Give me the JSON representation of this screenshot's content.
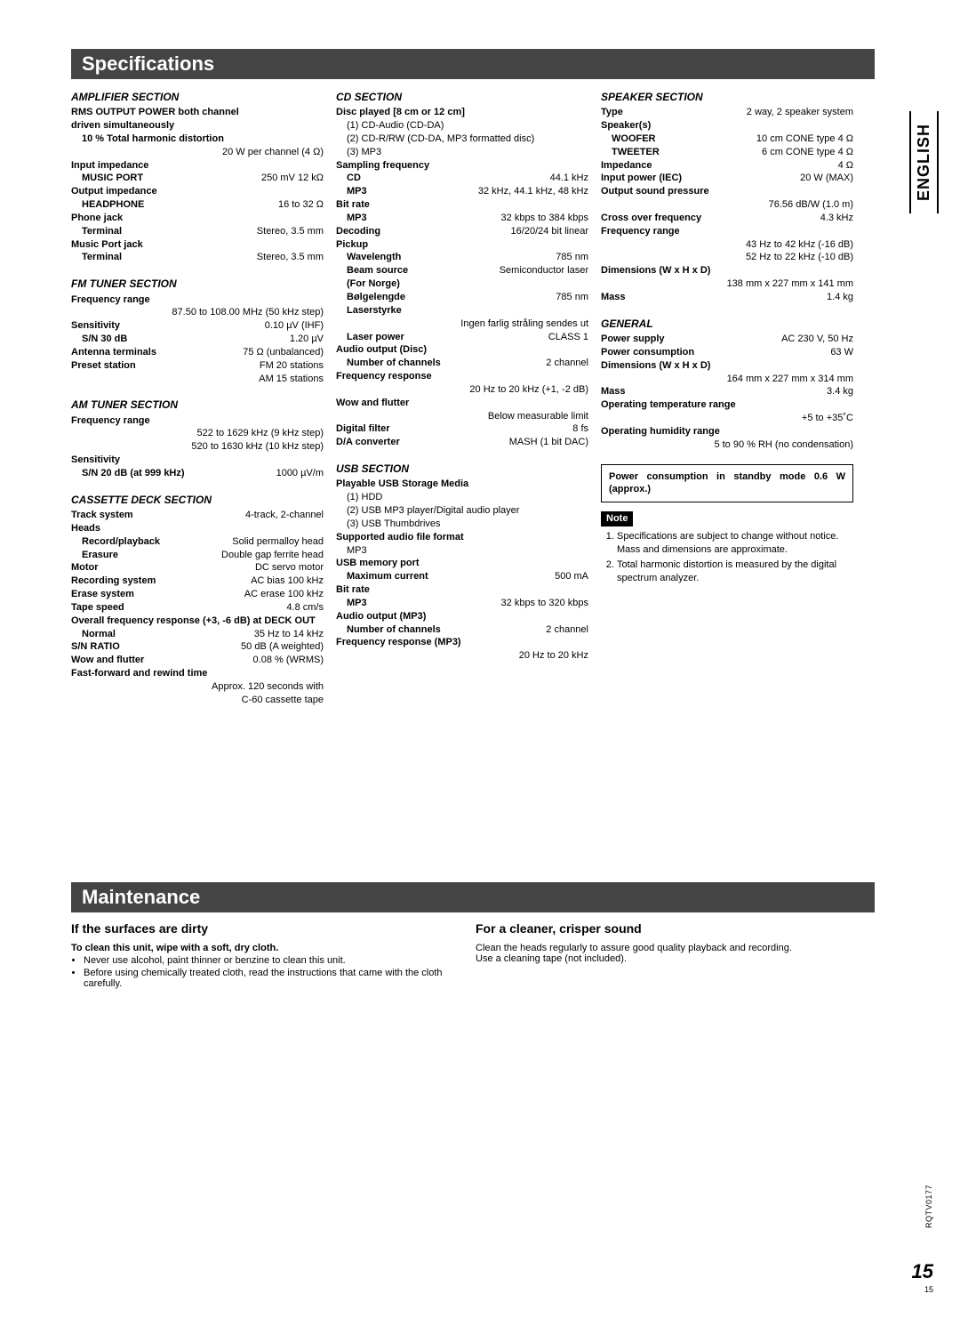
{
  "sideTab": "ENGLISH",
  "docCode": "RQTV0177",
  "pageNumberBig": "15",
  "pageNumberSmall": "15",
  "specs": {
    "title": "Specifications",
    "colors": {
      "barBg": "#444444",
      "barFg": "#ffffff"
    },
    "col1": {
      "amplifier": {
        "heading": "AMPLIFIER SECTION",
        "rmsLine1": "RMS OUTPUT POWER both channel",
        "rmsLine2": "driven simultaneously",
        "thdLabel": "10 % Total harmonic distortion",
        "thdValue": "20 W per channel (4 Ω)",
        "inputImpLabel": "Input impedance",
        "musicPortLabel": "MUSIC PORT",
        "musicPortValue": "250 mV 12 kΩ",
        "outputImpLabel": "Output impedance",
        "headphoneLabel": "HEADPHONE",
        "headphoneValue": "16 to 32 Ω",
        "phoneJackLabel": "Phone jack",
        "terminal1Label": "Terminal",
        "terminal1Value": "Stereo, 3.5 mm",
        "musicPortJackLabel": "Music Port jack",
        "terminal2Label": "Terminal",
        "terminal2Value": "Stereo, 3.5 mm"
      },
      "fm": {
        "heading": "FM TUNER SECTION",
        "freqRangeLabel": "Frequency range",
        "freqRangeValue": "87.50 to 108.00 MHz (50 kHz step)",
        "sensLabel": "Sensitivity",
        "sensValue": "0.10 µV (IHF)",
        "sn30Label": "S/N 30 dB",
        "sn30Value": "1.20 µV",
        "antennaLabel": "Antenna terminals",
        "antennaValue": "75 Ω (unbalanced)",
        "presetLabel": "Preset station",
        "presetValue1": "FM 20 stations",
        "presetValue2": "AM 15 stations"
      },
      "am": {
        "heading": "AM TUNER SECTION",
        "freqRangeLabel": "Frequency range",
        "freqRangeValue1": "522 to 1629 kHz (9 kHz step)",
        "freqRangeValue2": "520 to 1630 kHz (10 kHz step)",
        "sensLabel": "Sensitivity",
        "sn20Label": "S/N 20 dB (at 999 kHz)",
        "sn20Value": "1000 µV/m"
      },
      "cassette": {
        "heading": "CASSETTE DECK SECTION",
        "trackLabel": "Track system",
        "trackValue": "4-track, 2-channel",
        "headsLabel": "Heads",
        "recPlayLabel": "Record/playback",
        "recPlayValue": "Solid permalloy head",
        "erasureLabel": "Erasure",
        "erasureValue": "Double gap ferrite head",
        "motorLabel": "Motor",
        "motorValue": "DC servo motor",
        "recSysLabel": "Recording system",
        "recSysValue": "AC bias 100 kHz",
        "eraseSysLabel": "Erase system",
        "eraseSysValue": "AC erase 100 kHz",
        "tapeSpeedLabel": "Tape speed",
        "tapeSpeedValue": "4.8 cm/s",
        "overallFreqLabel": "Overall frequency response (+3, -6 dB) at DECK OUT",
        "normalLabel": "Normal",
        "normalValue": "35 Hz to 14 kHz",
        "snRatioLabel": "S/N RATIO",
        "snRatioValue": "50 dB (A weighted)",
        "wowLabel": "Wow and flutter",
        "wowValue": "0.08 % (WRMS)",
        "ffrwLabel": "Fast-forward and rewind time",
        "ffrwValue1": "Approx. 120 seconds with",
        "ffrwValue2": "C-60 cassette tape"
      }
    },
    "col2": {
      "cd": {
        "heading": "CD SECTION",
        "discLabel": "Disc played [8 cm or 12 cm]",
        "disc1": "(1) CD-Audio (CD-DA)",
        "disc2": "(2) CD-R/RW (CD-DA, MP3 formatted disc)",
        "disc3": "(3) MP3",
        "sampFreqLabel": "Sampling frequency",
        "cdLabel": "CD",
        "cdValue": "44.1 kHz",
        "mp3Label": "MP3",
        "mp3Value": "32 kHz, 44.1 kHz, 48 kHz",
        "bitRateLabel": "Bit rate",
        "mp3BrLabel": "MP3",
        "mp3BrValue": "32 kbps to 384 kbps",
        "decodingLabel": "Decoding",
        "decodingValue": "16/20/24 bit linear",
        "pickupLabel": "Pickup",
        "wavelenLabel": "Wavelength",
        "wavelenValue": "785 nm",
        "beamLabel": "Beam source",
        "beamValue": "Semiconductor laser",
        "forNorge": "(For Norge)",
        "bolgeLabel": "Bølgelengde",
        "bolgeValue": "785 nm",
        "laserstyrkeLabel": "Laserstyrke",
        "laserstyrkeValue": "Ingen farlig stråling sendes ut",
        "laserPowerLabel": "Laser power",
        "laserPowerValue": "CLASS 1",
        "audioOutLabel": "Audio output (Disc)",
        "numChLabel": "Number of channels",
        "numChValue": "2 channel",
        "freqRespLabel": "Frequency response",
        "freqRespValue": "20 Hz to 20 kHz (+1, -2 dB)",
        "wowLabel": "Wow and flutter",
        "wowValue": "Below measurable limit",
        "digFilterLabel": "Digital filter",
        "digFilterValue": "8 fs",
        "daLabel": "D/A converter",
        "daValue": "MASH (1 bit DAC)"
      },
      "usb": {
        "heading": "USB SECTION",
        "playableLabel": "Playable USB Storage Media",
        "p1": "(1) HDD",
        "p2": "(2) USB MP3 player/Digital audio player",
        "p3": "(3) USB Thumbdrives",
        "supportedLabel": "Supported audio file format",
        "supportedValue": "MP3",
        "usbMemLabel": "USB memory port",
        "maxCurLabel": "Maximum current",
        "maxCurValue": "500 mA",
        "bitRateLabel": "Bit rate",
        "mp3Label": "MP3",
        "mp3Value": "32 kbps to 320 kbps",
        "audioOutLabel": "Audio output (MP3)",
        "numChLabel": "Number of channels",
        "numChValue": "2 channel",
        "freqRespLabel": "Frequency response (MP3)",
        "freqRespValue": "20 Hz to 20 kHz"
      }
    },
    "col3": {
      "speaker": {
        "heading": "SPEAKER SECTION",
        "typeLabel": "Type",
        "typeValue": "2 way, 2 speaker system",
        "speakersLabel": "Speaker(s)",
        "wooferLabel": "WOOFER",
        "wooferValue": "10 cm CONE type 4 Ω",
        "tweeterLabel": "TWEETER",
        "tweeterValue": "6 cm CONE type 4 Ω",
        "impedanceLabel": "Impedance",
        "impedanceValue": "4 Ω",
        "inputPowerLabel": "Input power (IEC)",
        "inputPowerValue": "20 W (MAX)",
        "ospLabel": "Output sound pressure",
        "ospValue": "76.56 dB/W (1.0 m)",
        "crossLabel": "Cross over frequency",
        "crossValue": "4.3 kHz",
        "freqRangeLabel": "Frequency range",
        "freqRangeValue1": "43 Hz to 42 kHz (-16 dB)",
        "freqRangeValue2": "52 Hz to 22 kHz (-10 dB)",
        "dimLabel": "Dimensions (W x H x D)",
        "dimValue": "138 mm x 227 mm x 141 mm",
        "massLabel": "Mass",
        "massValue": "1.4 kg"
      },
      "general": {
        "heading": "GENERAL",
        "psLabel": "Power supply",
        "psValue": "AC 230 V, 50 Hz",
        "pcLabel": "Power consumption",
        "pcValue": "63 W",
        "dimLabel": "Dimensions (W x H x D)",
        "dimValue": "164 mm x 227 mm x 314 mm",
        "massLabel": "Mass",
        "massValue": "3.4 kg",
        "otrLabel": "Operating temperature range",
        "otrValue": "+5 to +35˚C",
        "ohrLabel": "Operating humidity range",
        "ohrValue": "5 to 90 % RH (no condensation)"
      },
      "box": "Power consumption in standby mode 0.6 W (approx.)",
      "noteLabel": "Note",
      "note1": "Specifications are subject to change without notice.",
      "note1b": "Mass and dimensions are approximate.",
      "note2": "Total harmonic distortion is measured by the digital spectrum analyzer."
    }
  },
  "maintenance": {
    "title": "Maintenance",
    "left": {
      "heading": "If the surfaces are dirty",
      "sub": "To clean this unit, wipe with a soft, dry cloth.",
      "b1": "Never use alcohol, paint thinner or benzine to clean this unit.",
      "b2": "Before using chemically treated cloth, read the instructions that came with the cloth carefully."
    },
    "right": {
      "heading": "For a cleaner, crisper sound",
      "p1": "Clean the heads regularly to assure good quality playback and recording.",
      "p2": "Use a cleaning tape (not included)."
    }
  }
}
